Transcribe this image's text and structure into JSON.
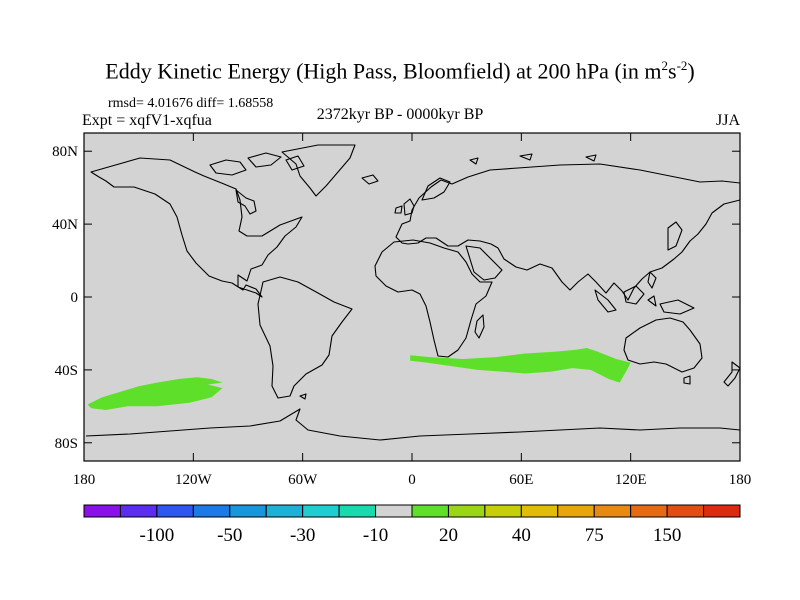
{
  "title": {
    "main": "Eddy Kinetic Energy (High Pass, Bloomfield) at 200 hPa (in m",
    "sup1": "2",
    "mid": "s",
    "sup2": "-2",
    "end": ")"
  },
  "stats": {
    "rmsd_line": "rmsd= 4.01676 diff= 1.68558",
    "expt_line": "Expt = xqfV1-xqfua"
  },
  "period": "2372kyr BP - 0000kyr BP",
  "season": "JJA",
  "map": {
    "projection": "cylindrical equidistant",
    "lon_range": [
      -180,
      180
    ],
    "lat_range": [
      -90,
      90
    ],
    "background_color": "#d3d3d3",
    "lat_ticks": [
      {
        "lat": 80,
        "label": "80N"
      },
      {
        "lat": 40,
        "label": "40N"
      },
      {
        "lat": 0,
        "label": "0"
      },
      {
        "lat": -40,
        "label": "40S"
      },
      {
        "lat": -80,
        "label": "80S"
      }
    ],
    "lon_ticks": [
      {
        "lon": -180,
        "label": "180"
      },
      {
        "lon": -120,
        "label": "120W"
      },
      {
        "lon": -60,
        "label": "60W"
      },
      {
        "lon": 0,
        "label": "0"
      },
      {
        "lon": 60,
        "label": "60E"
      },
      {
        "lon": 120,
        "label": "120E"
      },
      {
        "lon": 180,
        "label": "180"
      }
    ],
    "anomaly_regions": [
      {
        "name": "south-pacific-positive-anomaly",
        "level": "10 to 20",
        "color": "#5ee02a",
        "lonlat": [
          [
            -178,
            -59
          ],
          [
            -170,
            -55
          ],
          [
            -160,
            -52
          ],
          [
            -150,
            -49
          ],
          [
            -140,
            -47
          ],
          [
            -128,
            -45
          ],
          [
            -118,
            -44
          ],
          [
            -110,
            -45
          ],
          [
            -104,
            -47
          ],
          [
            -112,
            -48
          ],
          [
            -104,
            -50
          ],
          [
            -110,
            -55
          ],
          [
            -122,
            -58
          ],
          [
            -140,
            -60
          ],
          [
            -156,
            -60
          ],
          [
            -168,
            -62
          ],
          [
            -176,
            -61
          ]
        ]
      },
      {
        "name": "south-indian-ocean-positive-anomaly",
        "level": "10 to 20",
        "color": "#5ee02a",
        "lonlat": [
          [
            -1,
            -32
          ],
          [
            10,
            -33
          ],
          [
            28,
            -34
          ],
          [
            46,
            -33
          ],
          [
            62,
            -31
          ],
          [
            78,
            -30
          ],
          [
            90,
            -29
          ],
          [
            96,
            -28
          ],
          [
            102,
            -30
          ],
          [
            112,
            -34
          ],
          [
            120,
            -36
          ],
          [
            118,
            -40
          ],
          [
            114,
            -47
          ],
          [
            108,
            -45
          ],
          [
            98,
            -40
          ],
          [
            88,
            -39
          ],
          [
            76,
            -41
          ],
          [
            62,
            -42
          ],
          [
            50,
            -41
          ],
          [
            36,
            -40
          ],
          [
            22,
            -38
          ],
          [
            8,
            -36
          ],
          [
            -1,
            -35
          ]
        ]
      }
    ]
  },
  "colorbar": {
    "colors": [
      "#8a12e8",
      "#5b2df0",
      "#2f57ef",
      "#1c7ae6",
      "#1896dd",
      "#1db1d8",
      "#20cdd0",
      "#1ad9ae",
      "#d3d3d3",
      "#5ee02a",
      "#9ad615",
      "#c7cf0b",
      "#e1bd09",
      "#e8a60b",
      "#e88912",
      "#e66a12",
      "#e24d12",
      "#db2c10"
    ],
    "labels": [
      "-100",
      "-50",
      "-30",
      "-10",
      "20",
      "40",
      "75",
      "150"
    ]
  }
}
